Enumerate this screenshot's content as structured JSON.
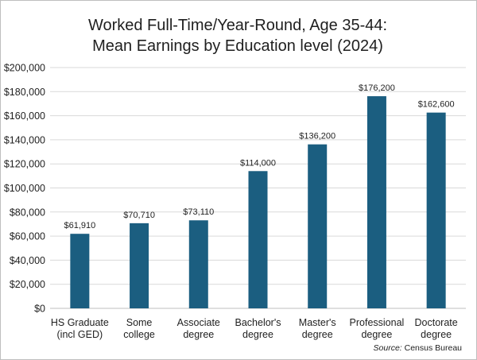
{
  "chart_data": {
    "type": "bar",
    "title_lines": [
      "Worked Full-Time/Year-Round, Age 35-44:",
      "Mean Earnings by Education level (2024)"
    ],
    "categories": [
      [
        "HS Graduate",
        "(incl GED)"
      ],
      [
        "Some",
        "college"
      ],
      [
        "Associate",
        "degree"
      ],
      [
        "Bachelor's",
        "degree"
      ],
      [
        "Master's",
        "degree"
      ],
      [
        "Professional",
        "degree"
      ],
      [
        "Doctorate",
        "degree"
      ]
    ],
    "values": [
      61910,
      70710,
      73110,
      114000,
      136200,
      176200,
      162600
    ],
    "data_labels": [
      "$61,910",
      "$70,710",
      "$73,110",
      "$114,000",
      "$136,200",
      "$176,200",
      "$162,600"
    ],
    "yticks": [
      0,
      20000,
      40000,
      60000,
      80000,
      100000,
      120000,
      140000,
      160000,
      180000,
      200000
    ],
    "ytick_labels": [
      "$0",
      "$20,000",
      "$40,000",
      "$60,000",
      "$80,000",
      "$100,000",
      "$120,000",
      "$140,000",
      "$160,000",
      "$180,000",
      "$200,000"
    ],
    "ylim": [
      0,
      200000
    ],
    "grid": true,
    "bar_color": "#1b5e80",
    "grid_color": "#d9d9d9",
    "source_prefix": "Source:",
    "source_text": " Census Bureau"
  }
}
